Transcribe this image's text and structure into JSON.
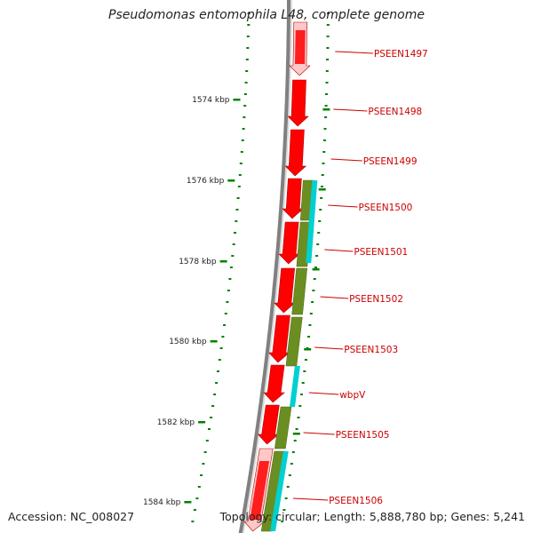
{
  "title": "Pseudomonas entomophila L48, complete genome",
  "footer": {
    "accession": "Accession: NC_008027",
    "info": "Topology: circular; Length: 5,888,780 bp; Genes: 5,241"
  },
  "scale_labels": [
    {
      "label": "1574 kbp",
      "kbp": 1574
    },
    {
      "label": "1576 kbp",
      "kbp": 1576
    },
    {
      "label": "1578 kbp",
      "kbp": 1578
    },
    {
      "label": "1580 kbp",
      "kbp": 1580
    },
    {
      "label": "1582 kbp",
      "kbp": 1582
    },
    {
      "label": "1584 kbp",
      "kbp": 1584
    }
  ],
  "genes": [
    {
      "name": "PSEEN1497",
      "strand": "forward"
    },
    {
      "name": "PSEEN1498",
      "strand": "forward"
    },
    {
      "name": "PSEEN1499",
      "strand": "forward"
    },
    {
      "name": "PSEEN1500",
      "strand": "forward"
    },
    {
      "name": "PSEEN1501",
      "strand": "forward"
    },
    {
      "name": "PSEEN1502",
      "strand": "forward"
    },
    {
      "name": "PSEEN1503",
      "strand": "forward"
    },
    {
      "name": "wbpV",
      "strand": "forward"
    },
    {
      "name": "PSEEN1505",
      "strand": "forward"
    },
    {
      "name": "PSEEN1506",
      "strand": "forward"
    }
  ],
  "colors": {
    "backbone": "#808080",
    "cds": "#ff0000",
    "cds_light": "#ffc8c8",
    "cog": "#6b8e23",
    "cyan": "#00d0d0",
    "ticks": "#008000",
    "label": "#cc0000"
  }
}
